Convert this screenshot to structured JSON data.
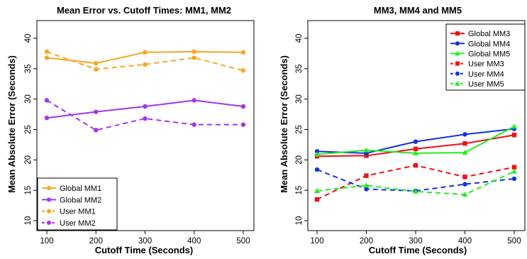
{
  "chart_data": [
    {
      "type": "line",
      "title": "Mean Error vs. Cutoff Times: MM1, MM2",
      "xlabel": "Cutoff Time (Seconds)",
      "ylabel": "Mean Absolute Error (Seconds)",
      "x": [
        100,
        200,
        300,
        400,
        500
      ],
      "xlim": [
        100,
        500
      ],
      "ylim": [
        10,
        40
      ],
      "xticks": [
        "100",
        "200",
        "300",
        "400",
        "500"
      ],
      "yticks": [
        "10",
        "15",
        "20",
        "25",
        "30",
        "35",
        "40"
      ],
      "legend_position": "bottom-left",
      "grid": false,
      "series": [
        {
          "name": "Global MM1",
          "color": "#f5a623",
          "dash": "solid",
          "marker": "circle",
          "values": [
            36.8,
            35.9,
            37.7,
            37.8,
            37.7
          ]
        },
        {
          "name": "Global MM2",
          "color": "#a335ee",
          "dash": "solid",
          "marker": "circle",
          "values": [
            26.9,
            27.9,
            28.8,
            29.8,
            28.8
          ]
        },
        {
          "name": "User MM1",
          "color": "#f5a623",
          "dash": "dashed",
          "marker": "circle",
          "values": [
            37.8,
            34.9,
            35.7,
            36.8,
            34.7
          ]
        },
        {
          "name": "User MM2",
          "color": "#a335ee",
          "dash": "dashed",
          "marker": "circle",
          "values": [
            29.8,
            24.9,
            26.8,
            25.8,
            25.8
          ]
        }
      ]
    },
    {
      "type": "line",
      "title": "MM3, MM4 and MM5",
      "xlabel": "Cutoff Time (Seconds)",
      "ylabel": "Mean Absolute Error (Seconds)",
      "x": [
        100,
        200,
        300,
        400,
        500
      ],
      "xlim": [
        100,
        500
      ],
      "ylim": [
        10,
        40
      ],
      "xticks": [
        "100",
        "200",
        "300",
        "400",
        "500"
      ],
      "yticks": [
        "10",
        "15",
        "20",
        "25",
        "30",
        "35",
        "40"
      ],
      "legend_position": "top-right",
      "grid": false,
      "series": [
        {
          "name": "Global MM3",
          "color": "#ee1111",
          "dash": "solid",
          "marker": "square",
          "values": [
            20.6,
            20.7,
            21.8,
            22.7,
            24.1
          ]
        },
        {
          "name": "Global MM4",
          "color": "#1133dd",
          "dash": "solid",
          "marker": "circle",
          "values": [
            21.4,
            21.1,
            23.0,
            24.2,
            25.1
          ]
        },
        {
          "name": "Global MM5",
          "color": "#22ee22",
          "dash": "solid",
          "marker": "triangle",
          "values": [
            20.9,
            21.6,
            21.1,
            21.2,
            25.5
          ]
        },
        {
          "name": "User MM3",
          "color": "#ee1111",
          "dash": "dashed",
          "marker": "square",
          "values": [
            13.5,
            17.4,
            19.1,
            17.2,
            18.8
          ]
        },
        {
          "name": "User MM4",
          "color": "#1133dd",
          "dash": "dashed",
          "marker": "circle",
          "values": [
            18.4,
            15.2,
            14.9,
            16.0,
            16.9
          ]
        },
        {
          "name": "User MM5",
          "color": "#22ee22",
          "dash": "dashed",
          "marker": "triangle",
          "values": [
            14.9,
            15.8,
            14.8,
            14.3,
            18.1
          ]
        }
      ]
    }
  ]
}
